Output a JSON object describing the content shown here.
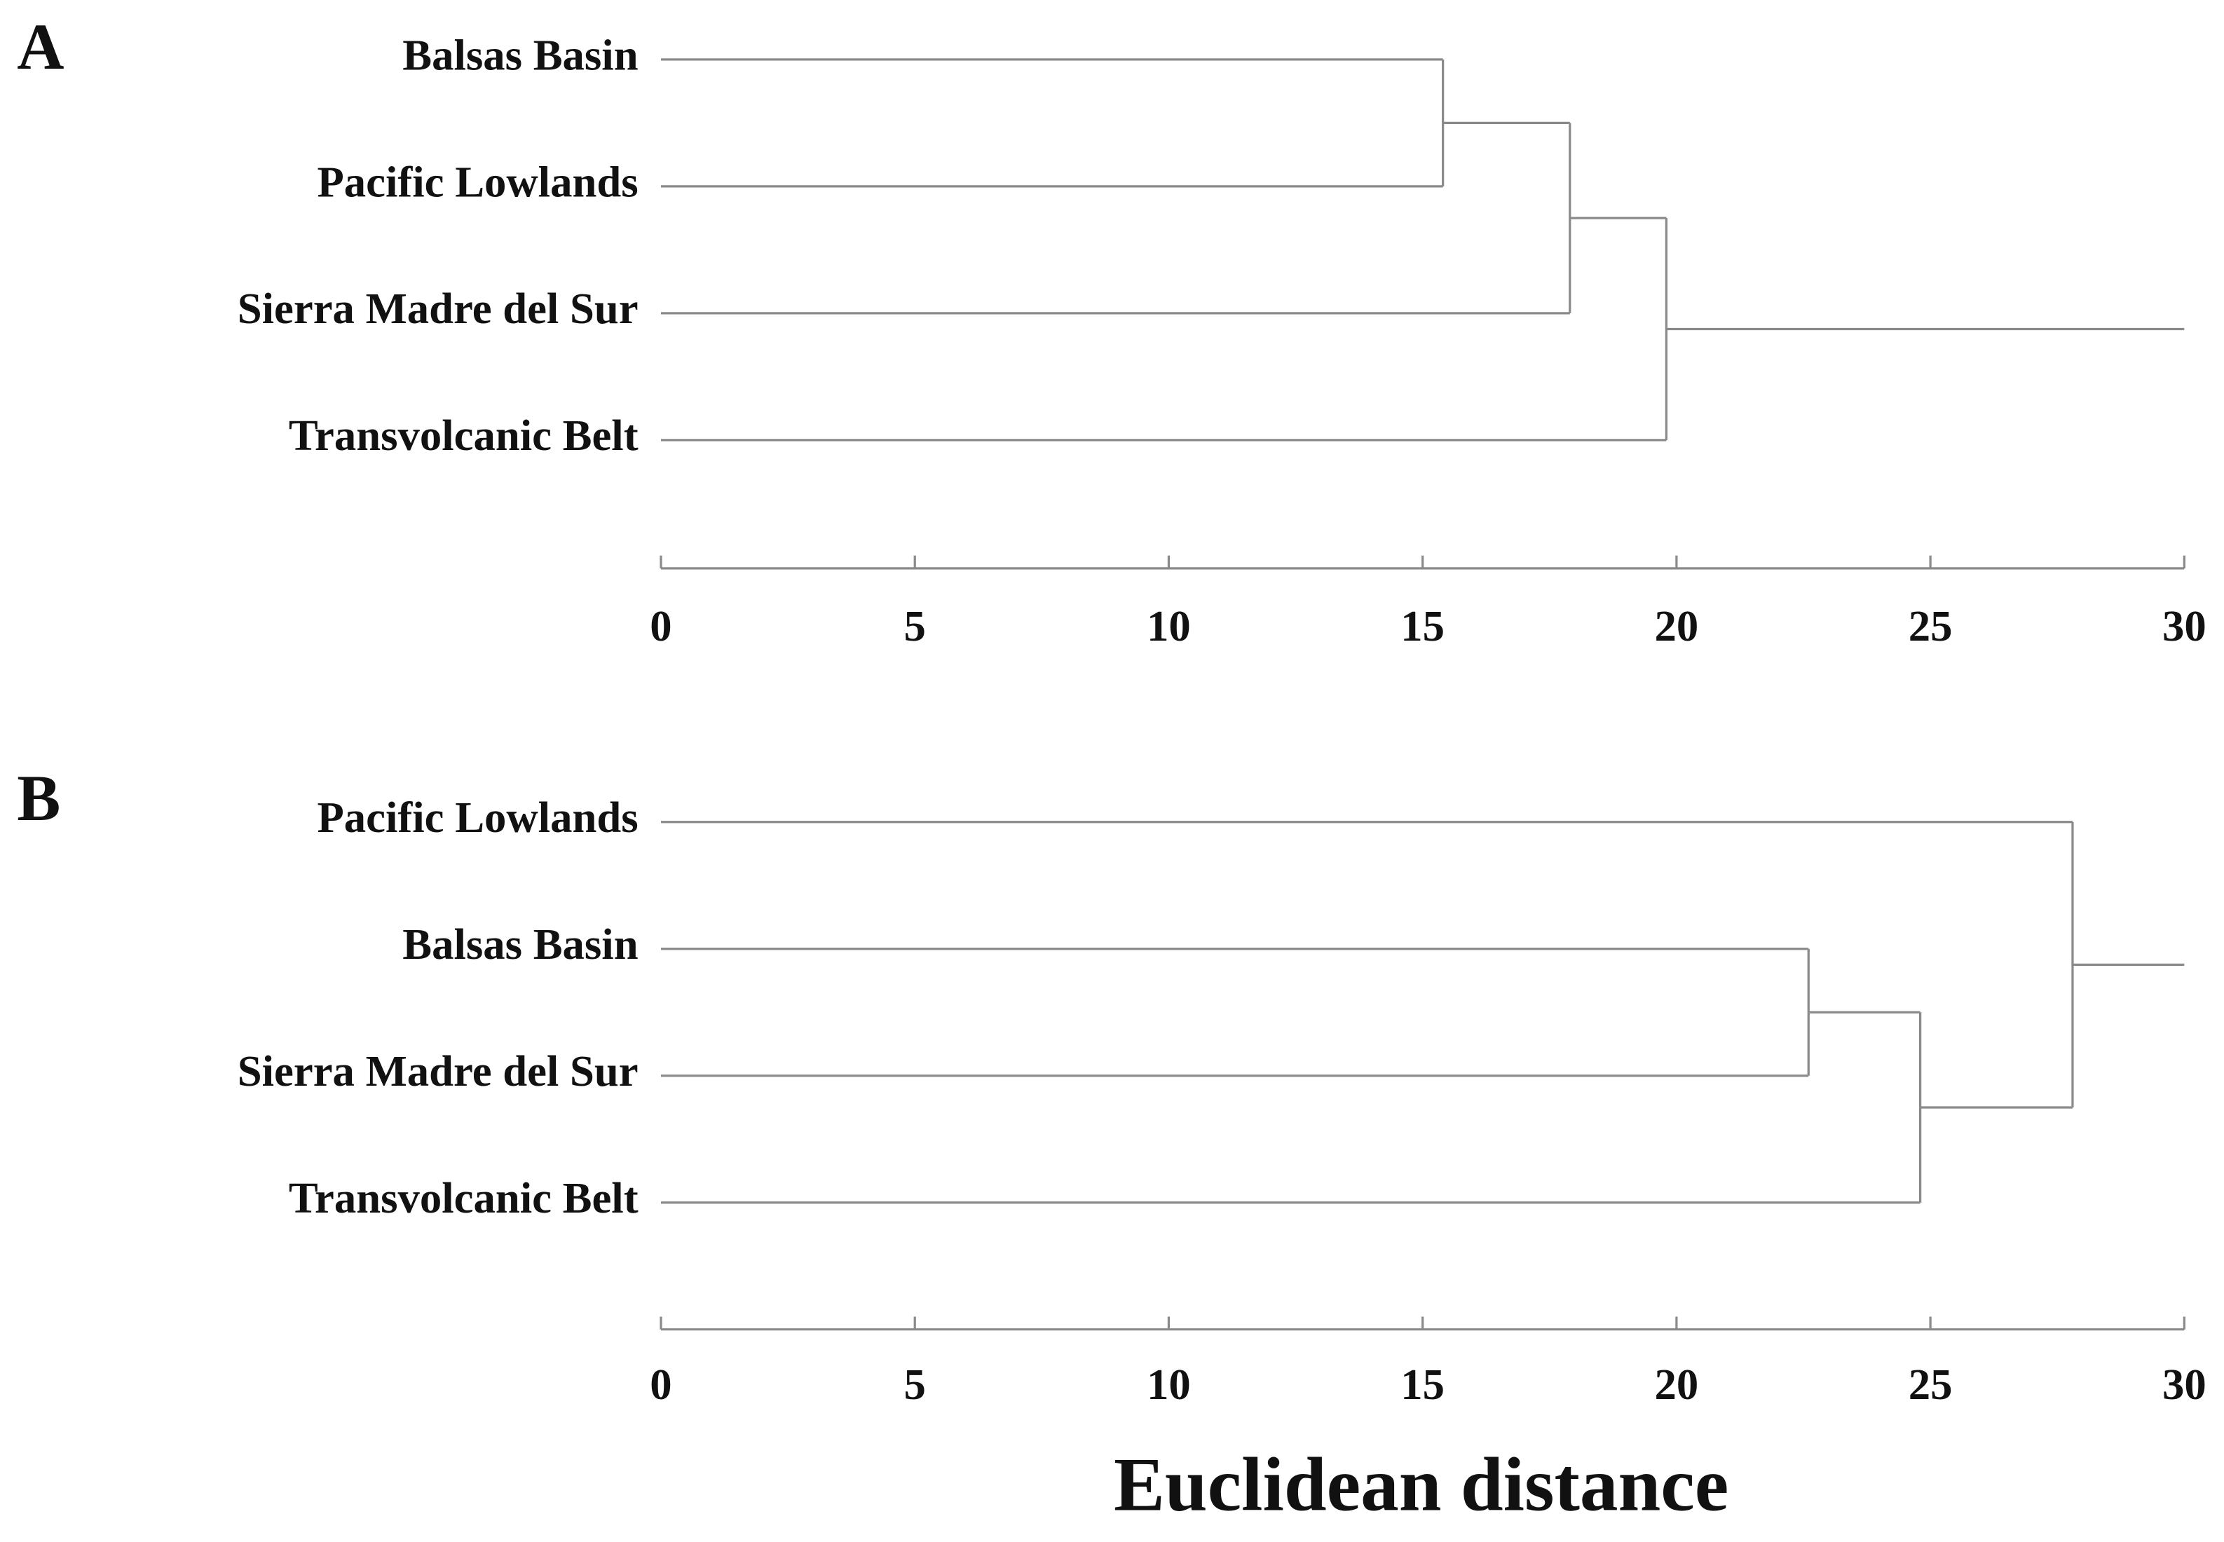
{
  "chart_data": [
    {
      "type": "dendrogram",
      "panel_label": "A",
      "leaves": [
        "Balsas Basin",
        "Pacific Lowlands",
        "Sierra Madre del Sur",
        "Transvolcanic Belt"
      ],
      "merges": [
        {
          "left": 0,
          "right": 1,
          "height": 15.4
        },
        {
          "left": 4,
          "right": 2,
          "height": 17.9
        },
        {
          "left": 5,
          "right": 3,
          "height": 19.8
        }
      ],
      "xlim": [
        0,
        30
      ],
      "xticks": [
        0,
        5,
        10,
        15,
        20,
        25,
        30
      ]
    },
    {
      "type": "dendrogram",
      "panel_label": "B",
      "leaves": [
        "Pacific Lowlands",
        "Balsas Basin",
        "Sierra Madre del Sur",
        "Transvolcanic Belt"
      ],
      "merges": [
        {
          "left": 1,
          "right": 2,
          "height": 22.6
        },
        {
          "left": 4,
          "right": 3,
          "height": 24.8
        },
        {
          "left": 0,
          "right": 5,
          "height": 27.8
        }
      ],
      "xlim": [
        0,
        30
      ],
      "xticks": [
        0,
        5,
        10,
        15,
        20,
        25,
        30
      ]
    }
  ],
  "axis_title": "Euclidean distance"
}
